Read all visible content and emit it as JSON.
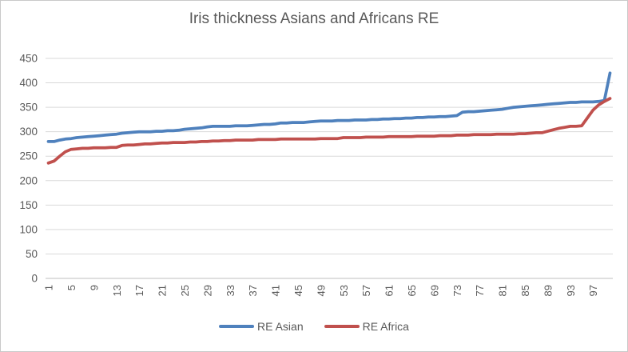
{
  "chart_data": {
    "type": "line",
    "title": "Iris thickness Asians and Africans RE",
    "x_tick_labels": [
      "1",
      "5",
      "9",
      "13",
      "17",
      "21",
      "25",
      "29",
      "33",
      "37",
      "41",
      "45",
      "49",
      "53",
      "57",
      "61",
      "65",
      "69",
      "73",
      "77",
      "81",
      "85",
      "89",
      "93",
      "97"
    ],
    "y_ticks": [
      0,
      50,
      100,
      150,
      200,
      250,
      300,
      350,
      400,
      450
    ],
    "ylim": [
      0,
      450
    ],
    "xlim_points": 100,
    "grid": true,
    "legend_position": "bottom",
    "colors": {
      "title_text": "#595959",
      "axis_text": "#595959",
      "gridline": "#d9d9d9",
      "axis_line": "#bfbfbf",
      "background": "#ffffff"
    },
    "series": [
      {
        "name": "RE Asian",
        "color": "#4F81BD",
        "values": [
          280,
          280,
          283,
          285,
          286,
          288,
          289,
          290,
          291,
          292,
          293,
          294,
          295,
          297,
          298,
          299,
          300,
          300,
          300,
          301,
          301,
          302,
          302,
          303,
          305,
          306,
          307,
          308,
          310,
          311,
          311,
          311,
          311,
          312,
          312,
          312,
          313,
          314,
          315,
          315,
          316,
          318,
          318,
          319,
          319,
          319,
          320,
          321,
          322,
          322,
          322,
          323,
          323,
          323,
          324,
          324,
          324,
          325,
          325,
          326,
          326,
          327,
          327,
          328,
          328,
          329,
          329,
          330,
          330,
          331,
          331,
          332,
          333,
          340,
          341,
          341,
          342,
          343,
          344,
          345,
          346,
          348,
          350,
          351,
          352,
          353,
          354,
          355,
          356,
          357,
          358,
          359,
          360,
          360,
          361,
          361,
          361,
          362,
          364,
          420
        ]
      },
      {
        "name": "RE Africa",
        "color": "#C0504D",
        "values": [
          236,
          240,
          250,
          259,
          264,
          265,
          266,
          266,
          267,
          267,
          267,
          268,
          268,
          272,
          273,
          273,
          274,
          275,
          275,
          276,
          277,
          277,
          278,
          278,
          278,
          279,
          279,
          280,
          280,
          281,
          281,
          282,
          282,
          283,
          283,
          283,
          283,
          284,
          284,
          284,
          284,
          285,
          285,
          285,
          285,
          285,
          285,
          285,
          286,
          286,
          286,
          286,
          288,
          288,
          288,
          288,
          289,
          289,
          289,
          289,
          290,
          290,
          290,
          290,
          290,
          291,
          291,
          291,
          291,
          292,
          292,
          292,
          293,
          293,
          293,
          294,
          294,
          294,
          294,
          295,
          295,
          295,
          295,
          296,
          296,
          297,
          298,
          298,
          301,
          304,
          307,
          309,
          311,
          311,
          312,
          328,
          344,
          355,
          362,
          368
        ]
      }
    ]
  }
}
